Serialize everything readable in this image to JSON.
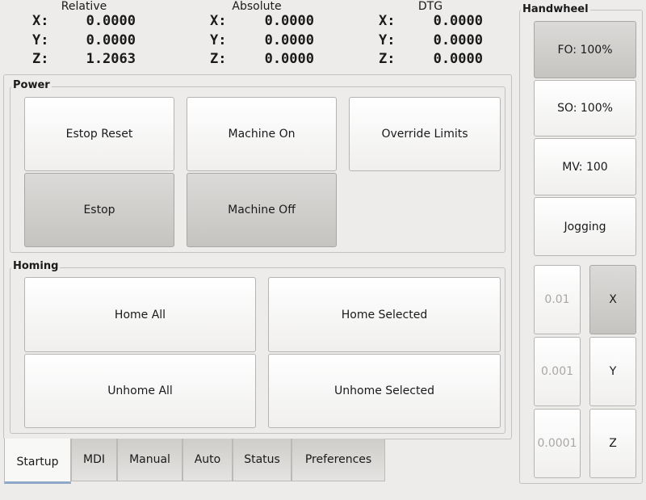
{
  "dro": [
    {
      "label": "Relative",
      "rows": [
        [
          "X:",
          "0.0000"
        ],
        [
          "Y:",
          "0.0000"
        ],
        [
          "Z:",
          "1.2063"
        ]
      ]
    },
    {
      "label": "Absolute",
      "rows": [
        [
          "X:",
          "0.0000"
        ],
        [
          "Y:",
          "0.0000"
        ],
        [
          "Z:",
          "0.0000"
        ]
      ]
    },
    {
      "label": "DTG",
      "rows": [
        [
          "X:",
          "0.0000"
        ],
        [
          "Y:",
          "0.0000"
        ],
        [
          "Z:",
          "0.0000"
        ]
      ]
    }
  ],
  "power": {
    "title": "Power",
    "estop_reset": "Estop Reset",
    "machine_on": "Machine On",
    "override_limits": "Override Limits",
    "estop": "Estop",
    "machine_off": "Machine Off"
  },
  "homing": {
    "title": "Homing",
    "home_all": "Home All",
    "home_selected": "Home Selected",
    "unhome_all": "Unhome All",
    "unhome_selected": "Unhome Selected"
  },
  "tabs": [
    "Startup",
    "MDI",
    "Manual",
    "Auto",
    "Status",
    "Preferences"
  ],
  "active_tab": "Startup",
  "handwheel": {
    "title": "Handwheel",
    "fo": "FO: 100%",
    "so": "SO: 100%",
    "mv": "MV: 100",
    "jogging": "Jogging",
    "increments": [
      "0.01",
      "0.001",
      "0.0001"
    ],
    "axes": [
      "X",
      "Y",
      "Z"
    ],
    "selected_axis": "X",
    "selected_mode": "FO"
  }
}
